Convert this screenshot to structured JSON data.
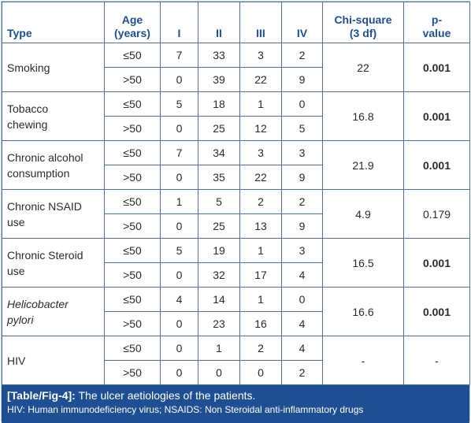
{
  "table": {
    "headers": {
      "type": "Type",
      "age": [
        "Age",
        "(years)"
      ],
      "I": "I",
      "II": "II",
      "III": "III",
      "IV": "IV",
      "chi": [
        "Chi-square",
        "(3 df)"
      ],
      "p": [
        "p-",
        "value"
      ]
    },
    "rows": [
      {
        "type": [
          "Smoking"
        ],
        "italic": false,
        "sub": [
          {
            "age": "≤50",
            "I": "7",
            "II": "33",
            "III": "3",
            "IV": "2"
          },
          {
            "age": ">50",
            "I": "0",
            "II": "39",
            "III": "22",
            "IV": "9"
          }
        ],
        "chi": "22",
        "p": "0.001",
        "p_bold": true
      },
      {
        "type": [
          "Tobacco",
          "chewing"
        ],
        "italic": false,
        "sub": [
          {
            "age": "≤50",
            "I": "5",
            "II": "18",
            "III": "1",
            "IV": "0"
          },
          {
            "age": ">50",
            "I": "0",
            "II": "25",
            "III": "12",
            "IV": "5"
          }
        ],
        "chi": "16.8",
        "p": "0.001",
        "p_bold": true
      },
      {
        "type": [
          "Chronic alcohol",
          "consumption"
        ],
        "italic": false,
        "sub": [
          {
            "age": "≤50",
            "I": "7",
            "II": "34",
            "III": "3",
            "IV": "3"
          },
          {
            "age": ">50",
            "I": "0",
            "II": "35",
            "III": "22",
            "IV": "9"
          }
        ],
        "chi": "21.9",
        "p": "0.001",
        "p_bold": true
      },
      {
        "type": [
          "Chronic NSAID",
          "use"
        ],
        "italic": false,
        "sub": [
          {
            "age": "≤50",
            "I": "1",
            "II": "5",
            "III": "2",
            "IV": "2"
          },
          {
            "age": ">50",
            "I": "0",
            "II": "25",
            "III": "13",
            "IV": "9"
          }
        ],
        "chi": "4.9",
        "p": "0.179",
        "p_bold": false
      },
      {
        "type": [
          "Chronic Steroid",
          "use"
        ],
        "italic": false,
        "sub": [
          {
            "age": "≤50",
            "I": "5",
            "II": "19",
            "III": "1",
            "IV": "3"
          },
          {
            "age": ">50",
            "I": "0",
            "II": "32",
            "III": "17",
            "IV": "4"
          }
        ],
        "chi": "16.5",
        "p": "0.001",
        "p_bold": true
      },
      {
        "type": [
          "Helicobacter",
          "pylori"
        ],
        "italic": true,
        "sub": [
          {
            "age": "≤50",
            "I": "4",
            "II": "14",
            "III": "1",
            "IV": "0"
          },
          {
            "age": ">50",
            "I": "0",
            "II": "23",
            "III": "16",
            "IV": "4"
          }
        ],
        "chi": "16.6",
        "p": "0.001",
        "p_bold": true
      },
      {
        "type": [
          "HIV"
        ],
        "italic": false,
        "sub": [
          {
            "age": "≤50",
            "I": "0",
            "II": "1",
            "III": "2",
            "IV": "4"
          },
          {
            "age": ">50",
            "I": "0",
            "II": "0",
            "III": "0",
            "IV": "2"
          }
        ],
        "chi": "-",
        "p": "-",
        "p_bold": false
      }
    ]
  },
  "caption": {
    "label": "[Table/Fig-4]:",
    "title": " The ulcer aetiologies of the patients.",
    "note": "HIV: Human immunodeficiency virus; NSAIDS: Non Steroidal anti-inflammatory drugs"
  },
  "colors": {
    "header_text": "#1d4f93",
    "border": "#4b6fa6",
    "caption_bg": "#1f4f93",
    "caption_text": "#ffffff"
  }
}
